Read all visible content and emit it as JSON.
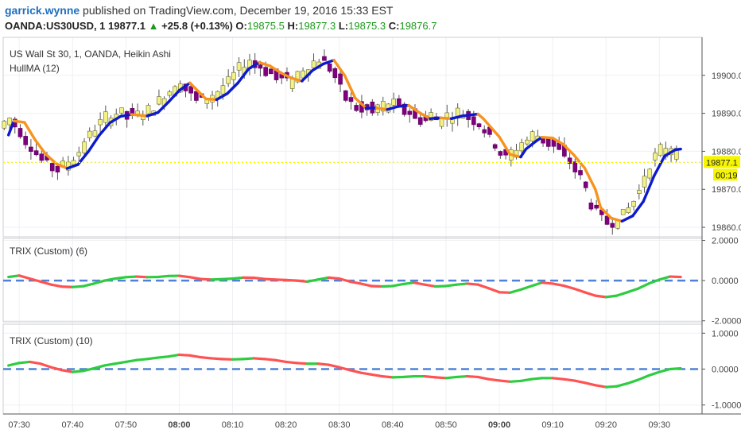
{
  "header": {
    "username": "garrick.wynne",
    "published_text": " published on TradingView.com, December 19, 2016 15:33 EST",
    "symbol": "OANDA:US30USD, 1",
    "last": "19877.1",
    "up_arrow": "▲",
    "change": "+25.8 (+0.13%)",
    "o_label": "O:",
    "o_value": "19875.5",
    "h_label": "H:",
    "h_value": "19877.3",
    "l_label": "L:",
    "l_value": "19875.3",
    "c_label": "C:",
    "c_value": "19876.7"
  },
  "chart_data": [
    {
      "type": "candlestick",
      "title": "US Wall St 30, 1, OANDA, Heikin Ashi",
      "indicator_label": "HullMA (12)",
      "y_ticks": [
        "19900.0",
        "19890.0",
        "19880.0",
        "19870.0",
        "19860.0"
      ],
      "y_tick_values": [
        19900,
        19890,
        19880,
        19870,
        19860
      ],
      "ylim": [
        19857.5,
        19910
      ],
      "last_price_label": "19877.1",
      "last_price": 19877.1,
      "countdown_label": "00:19",
      "colors": {
        "bull": "#f2f285",
        "bear": "#800080",
        "hull_up": "#0d1acc",
        "hull_down": "#f7931e",
        "price_line": "#f5f500"
      },
      "hma": [
        {
          "t": "07:28",
          "v": 19884.3
        },
        {
          "t": "07:29",
          "v": 19888.0
        },
        {
          "t": "07:31",
          "v": 19887.6
        },
        {
          "t": "07:33",
          "v": 19883.0
        },
        {
          "t": "07:35",
          "v": 19879.2
        },
        {
          "t": "07:37",
          "v": 19876.7
        },
        {
          "t": "07:39",
          "v": 19875.5
        },
        {
          "t": "07:41",
          "v": 19876.5
        },
        {
          "t": "07:43",
          "v": 19880.0
        },
        {
          "t": "07:45",
          "v": 19884.2
        },
        {
          "t": "07:47",
          "v": 19887.5
        },
        {
          "t": "07:49",
          "v": 19889.2
        },
        {
          "t": "07:51",
          "v": 19889.7
        },
        {
          "t": "07:54",
          "v": 19889.3
        },
        {
          "t": "07:56",
          "v": 19890.2
        },
        {
          "t": "07:58",
          "v": 19893.0
        },
        {
          "t": "08:00",
          "v": 19896.0
        },
        {
          "t": "08:02",
          "v": 19898.0
        },
        {
          "t": "08:03",
          "v": 19896.6
        },
        {
          "t": "08:05",
          "v": 19893.8
        },
        {
          "t": "08:07",
          "v": 19893.6
        },
        {
          "t": "08:09",
          "v": 19895.2
        },
        {
          "t": "08:11",
          "v": 19898.0
        },
        {
          "t": "08:13",
          "v": 19901.7
        },
        {
          "t": "08:15",
          "v": 19903.4
        },
        {
          "t": "08:17",
          "v": 19902.5
        },
        {
          "t": "08:19",
          "v": 19900.7
        },
        {
          "t": "08:21",
          "v": 19899.3
        },
        {
          "t": "08:23",
          "v": 19898.5
        },
        {
          "t": "08:25",
          "v": 19901.3
        },
        {
          "t": "08:27",
          "v": 19903.0
        },
        {
          "t": "08:29",
          "v": 19904.0
        },
        {
          "t": "08:31",
          "v": 19900.0
        },
        {
          "t": "08:33",
          "v": 19894.0
        },
        {
          "t": "08:35",
          "v": 19891.4
        },
        {
          "t": "08:37",
          "v": 19891.4
        },
        {
          "t": "08:39",
          "v": 19891.0
        },
        {
          "t": "08:41",
          "v": 19891.8
        },
        {
          "t": "08:43",
          "v": 19892.1
        },
        {
          "t": "08:45",
          "v": 19890.2
        },
        {
          "t": "08:47",
          "v": 19888.6
        },
        {
          "t": "08:49",
          "v": 19888.8
        },
        {
          "t": "08:51",
          "v": 19888.6
        },
        {
          "t": "08:53",
          "v": 19889.3
        },
        {
          "t": "08:56",
          "v": 19889.8
        },
        {
          "t": "08:57",
          "v": 19888.6
        },
        {
          "t": "09:00",
          "v": 19883.8
        },
        {
          "t": "09:02",
          "v": 19879.2
        },
        {
          "t": "09:04",
          "v": 19878.5
        },
        {
          "t": "09:05",
          "v": 19880.6
        },
        {
          "t": "09:07",
          "v": 19882.8
        },
        {
          "t": "09:08",
          "v": 19883.7
        },
        {
          "t": "09:10",
          "v": 19883.5
        },
        {
          "t": "09:12",
          "v": 19881.8
        },
        {
          "t": "09:14",
          "v": 19879.0
        },
        {
          "t": "09:16",
          "v": 19875.6
        },
        {
          "t": "09:18",
          "v": 19870.0
        },
        {
          "t": "09:19",
          "v": 19865.2
        },
        {
          "t": "09:21",
          "v": 19862.4
        },
        {
          "t": "09:23",
          "v": 19861.6
        },
        {
          "t": "09:25",
          "v": 19863.0
        },
        {
          "t": "09:27",
          "v": 19866.8
        },
        {
          "t": "09:29",
          "v": 19873.5
        },
        {
          "t": "09:31",
          "v": 19878.8
        },
        {
          "t": "09:33",
          "v": 19880.4
        },
        {
          "t": "09:34",
          "v": 19880.6
        }
      ]
    },
    {
      "type": "line",
      "title": "TRIX (Custom) (6)",
      "y_ticks": [
        "2.0000",
        "0.0000",
        "-2.0000"
      ],
      "y_tick_values": [
        2,
        0,
        -2
      ],
      "ylim": [
        -2.05,
        2.1
      ],
      "baseline": 0,
      "colors": {
        "rising": "#2ecc40",
        "falling": "#ff5252",
        "baseline": "#4f82d6"
      },
      "series": [
        {
          "t": "07:28",
          "v": 0.18
        },
        {
          "t": "07:30",
          "v": 0.25
        },
        {
          "t": "07:32",
          "v": 0.1
        },
        {
          "t": "07:34",
          "v": -0.05
        },
        {
          "t": "07:36",
          "v": -0.2
        },
        {
          "t": "07:38",
          "v": -0.3
        },
        {
          "t": "07:40",
          "v": -0.32
        },
        {
          "t": "07:42",
          "v": -0.28
        },
        {
          "t": "07:44",
          "v": -0.15
        },
        {
          "t": "07:46",
          "v": 0.0
        },
        {
          "t": "07:48",
          "v": 0.1
        },
        {
          "t": "07:50",
          "v": 0.17
        },
        {
          "t": "07:52",
          "v": 0.2
        },
        {
          "t": "07:54",
          "v": 0.17
        },
        {
          "t": "07:56",
          "v": 0.18
        },
        {
          "t": "07:58",
          "v": 0.23
        },
        {
          "t": "08:00",
          "v": 0.24
        },
        {
          "t": "08:02",
          "v": 0.17
        },
        {
          "t": "08:04",
          "v": 0.08
        },
        {
          "t": "08:06",
          "v": 0.05
        },
        {
          "t": "08:08",
          "v": 0.07
        },
        {
          "t": "08:10",
          "v": 0.1
        },
        {
          "t": "08:12",
          "v": 0.15
        },
        {
          "t": "08:14",
          "v": 0.14
        },
        {
          "t": "08:16",
          "v": 0.08
        },
        {
          "t": "08:18",
          "v": 0.05
        },
        {
          "t": "08:20",
          "v": 0.03
        },
        {
          "t": "08:22",
          "v": 0.0
        },
        {
          "t": "08:24",
          "v": -0.05
        },
        {
          "t": "08:26",
          "v": 0.05
        },
        {
          "t": "08:28",
          "v": 0.15
        },
        {
          "t": "08:30",
          "v": 0.1
        },
        {
          "t": "08:32",
          "v": -0.05
        },
        {
          "t": "08:34",
          "v": -0.15
        },
        {
          "t": "08:36",
          "v": -0.27
        },
        {
          "t": "08:38",
          "v": -0.29
        },
        {
          "t": "08:40",
          "v": -0.27
        },
        {
          "t": "08:42",
          "v": -0.17
        },
        {
          "t": "08:44",
          "v": -0.1
        },
        {
          "t": "08:46",
          "v": -0.2
        },
        {
          "t": "08:48",
          "v": -0.29
        },
        {
          "t": "08:50",
          "v": -0.27
        },
        {
          "t": "08:52",
          "v": -0.2
        },
        {
          "t": "08:54",
          "v": -0.15
        },
        {
          "t": "08:56",
          "v": -0.2
        },
        {
          "t": "08:58",
          "v": -0.38
        },
        {
          "t": "09:00",
          "v": -0.58
        },
        {
          "t": "09:02",
          "v": -0.6
        },
        {
          "t": "09:04",
          "v": -0.45
        },
        {
          "t": "09:06",
          "v": -0.27
        },
        {
          "t": "09:08",
          "v": -0.1
        },
        {
          "t": "09:10",
          "v": -0.15
        },
        {
          "t": "09:12",
          "v": -0.25
        },
        {
          "t": "09:14",
          "v": -0.4
        },
        {
          "t": "09:16",
          "v": -0.58
        },
        {
          "t": "09:18",
          "v": -0.75
        },
        {
          "t": "09:20",
          "v": -0.82
        },
        {
          "t": "09:22",
          "v": -0.75
        },
        {
          "t": "09:24",
          "v": -0.58
        },
        {
          "t": "09:26",
          "v": -0.4
        },
        {
          "t": "09:28",
          "v": -0.15
        },
        {
          "t": "09:30",
          "v": 0.05
        },
        {
          "t": "09:32",
          "v": 0.2
        },
        {
          "t": "09:34",
          "v": 0.18
        }
      ]
    },
    {
      "type": "line",
      "title": "TRIX (Custom) (10)",
      "y_ticks": [
        "1.0000",
        "0.0000",
        "-1.0000"
      ],
      "y_tick_values": [
        1,
        0,
        -1
      ],
      "ylim": [
        -1.25,
        1.25
      ],
      "baseline": 0,
      "colors": {
        "rising": "#2ecc40",
        "falling": "#ff5252",
        "baseline": "#4f82d6"
      },
      "series": [
        {
          "t": "07:28",
          "v": 0.1
        },
        {
          "t": "07:30",
          "v": 0.17
        },
        {
          "t": "07:32",
          "v": 0.2
        },
        {
          "t": "07:34",
          "v": 0.15
        },
        {
          "t": "07:36",
          "v": 0.05
        },
        {
          "t": "07:38",
          "v": -0.03
        },
        {
          "t": "07:40",
          "v": -0.08
        },
        {
          "t": "07:42",
          "v": -0.05
        },
        {
          "t": "07:44",
          "v": 0.02
        },
        {
          "t": "07:46",
          "v": 0.1
        },
        {
          "t": "07:48",
          "v": 0.15
        },
        {
          "t": "07:50",
          "v": 0.2
        },
        {
          "t": "07:52",
          "v": 0.25
        },
        {
          "t": "07:54",
          "v": 0.28
        },
        {
          "t": "07:56",
          "v": 0.32
        },
        {
          "t": "07:58",
          "v": 0.35
        },
        {
          "t": "08:00",
          "v": 0.4
        },
        {
          "t": "08:02",
          "v": 0.38
        },
        {
          "t": "08:04",
          "v": 0.33
        },
        {
          "t": "08:06",
          "v": 0.3
        },
        {
          "t": "08:08",
          "v": 0.28
        },
        {
          "t": "08:10",
          "v": 0.27
        },
        {
          "t": "08:12",
          "v": 0.28
        },
        {
          "t": "08:14",
          "v": 0.3
        },
        {
          "t": "08:16",
          "v": 0.28
        },
        {
          "t": "08:18",
          "v": 0.25
        },
        {
          "t": "08:20",
          "v": 0.2
        },
        {
          "t": "08:22",
          "v": 0.17
        },
        {
          "t": "08:24",
          "v": 0.15
        },
        {
          "t": "08:26",
          "v": 0.15
        },
        {
          "t": "08:28",
          "v": 0.12
        },
        {
          "t": "08:30",
          "v": 0.05
        },
        {
          "t": "08:32",
          "v": -0.03
        },
        {
          "t": "08:34",
          "v": -0.1
        },
        {
          "t": "08:36",
          "v": -0.15
        },
        {
          "t": "08:38",
          "v": -0.2
        },
        {
          "t": "08:40",
          "v": -0.23
        },
        {
          "t": "08:42",
          "v": -0.22
        },
        {
          "t": "08:44",
          "v": -0.2
        },
        {
          "t": "08:46",
          "v": -0.2
        },
        {
          "t": "08:48",
          "v": -0.23
        },
        {
          "t": "08:50",
          "v": -0.25
        },
        {
          "t": "08:52",
          "v": -0.22
        },
        {
          "t": "08:54",
          "v": -0.2
        },
        {
          "t": "08:56",
          "v": -0.22
        },
        {
          "t": "08:58",
          "v": -0.28
        },
        {
          "t": "09:00",
          "v": -0.32
        },
        {
          "t": "09:02",
          "v": -0.35
        },
        {
          "t": "09:04",
          "v": -0.33
        },
        {
          "t": "09:06",
          "v": -0.28
        },
        {
          "t": "09:08",
          "v": -0.25
        },
        {
          "t": "09:10",
          "v": -0.25
        },
        {
          "t": "09:12",
          "v": -0.28
        },
        {
          "t": "09:14",
          "v": -0.32
        },
        {
          "t": "09:16",
          "v": -0.38
        },
        {
          "t": "09:18",
          "v": -0.45
        },
        {
          "t": "09:20",
          "v": -0.5
        },
        {
          "t": "09:22",
          "v": -0.48
        },
        {
          "t": "09:24",
          "v": -0.4
        },
        {
          "t": "09:26",
          "v": -0.3
        },
        {
          "t": "09:28",
          "v": -0.18
        },
        {
          "t": "09:30",
          "v": -0.08
        },
        {
          "t": "09:32",
          "v": 0.0
        },
        {
          "t": "09:34",
          "v": 0.02
        }
      ]
    }
  ],
  "x_axis": {
    "ticks": [
      {
        "label": "07:30",
        "t": "07:30",
        "bold": false
      },
      {
        "label": "07:40",
        "t": "07:40",
        "bold": false
      },
      {
        "label": "07:50",
        "t": "07:50",
        "bold": false
      },
      {
        "label": "08:00",
        "t": "08:00",
        "bold": true
      },
      {
        "label": "08:10",
        "t": "08:10",
        "bold": false
      },
      {
        "label": "08:20",
        "t": "08:20",
        "bold": false
      },
      {
        "label": "08:30",
        "t": "08:30",
        "bold": false
      },
      {
        "label": "08:40",
        "t": "08:40",
        "bold": false
      },
      {
        "label": "08:50",
        "t": "08:50",
        "bold": false
      },
      {
        "label": "09:00",
        "t": "09:00",
        "bold": true
      },
      {
        "label": "09:10",
        "t": "09:10",
        "bold": false
      },
      {
        "label": "09:20",
        "t": "09:20",
        "bold": false
      },
      {
        "label": "09:30",
        "t": "09:30",
        "bold": false
      }
    ],
    "range": [
      "07:27",
      "09:38"
    ]
  }
}
